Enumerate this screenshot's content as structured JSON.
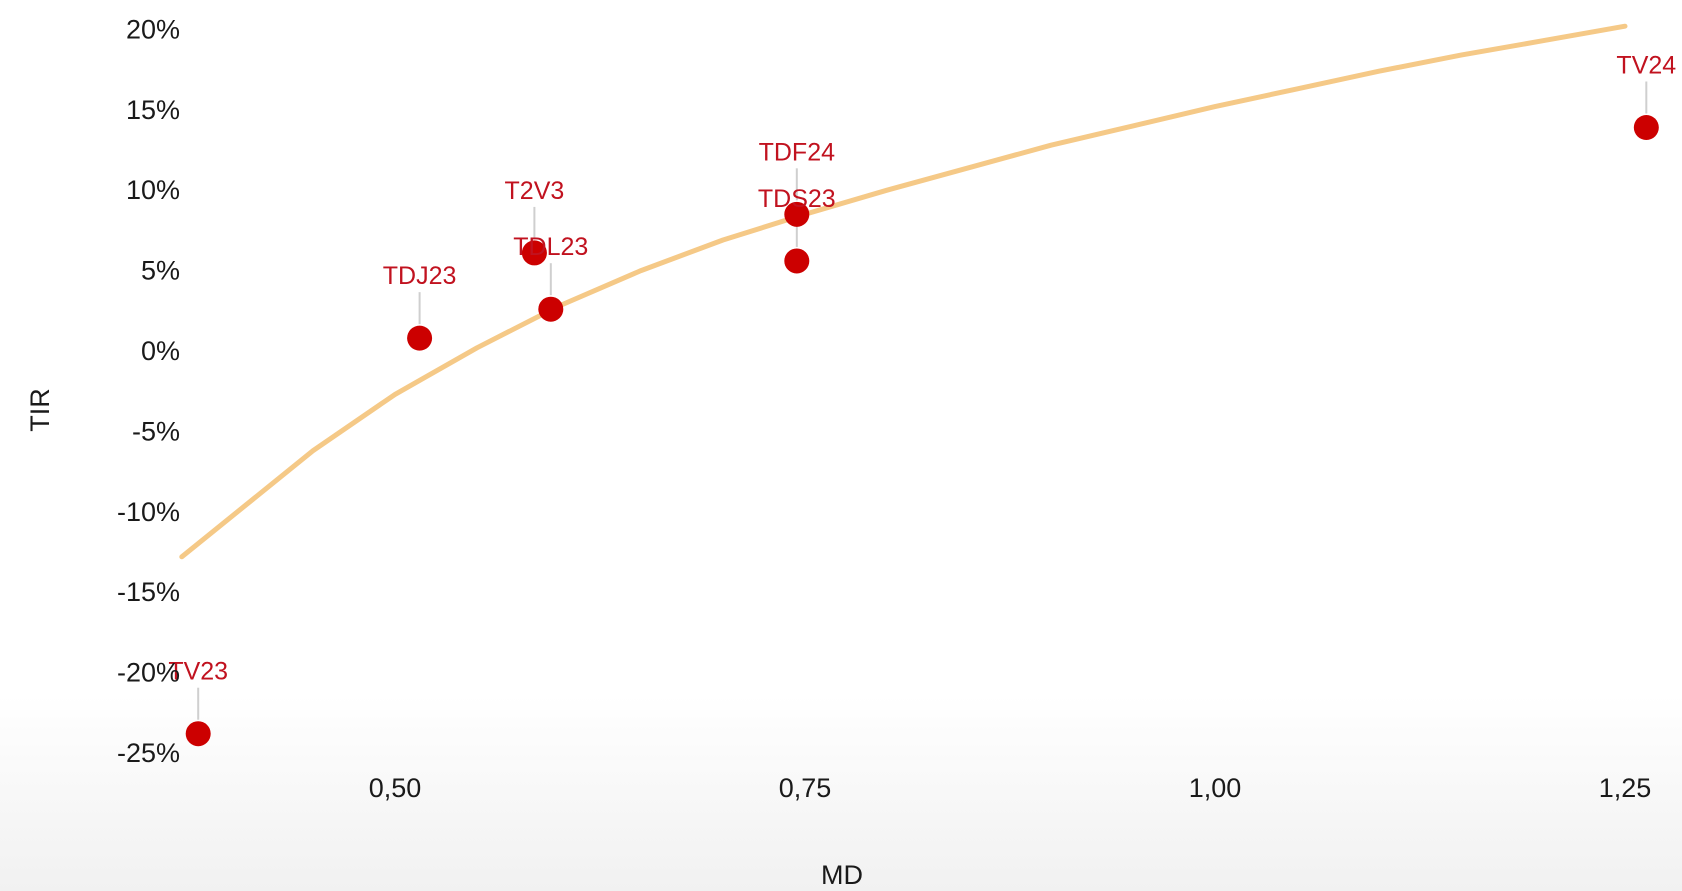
{
  "chart_data": {
    "type": "scatter",
    "xlabel": "MD",
    "ylabel": "TIR",
    "xlim": [
      0.37,
      1.27
    ],
    "ylim": [
      -25,
      20
    ],
    "x_ticks": [
      {
        "value": 0.5,
        "label": "0,50"
      },
      {
        "value": 0.75,
        "label": "0,75"
      },
      {
        "value": 1.0,
        "label": "1,00"
      },
      {
        "value": 1.25,
        "label": "1,25"
      }
    ],
    "y_ticks": [
      {
        "value": 20,
        "label": "20%"
      },
      {
        "value": 15,
        "label": "15%"
      },
      {
        "value": 10,
        "label": "10%"
      },
      {
        "value": 5,
        "label": "5%"
      },
      {
        "value": 0,
        "label": "0%"
      },
      {
        "value": -5,
        "label": "-5%"
      },
      {
        "value": -10,
        "label": "-10%"
      },
      {
        "value": -15,
        "label": "-15%"
      },
      {
        "value": -20,
        "label": "-20%"
      },
      {
        "value": -25,
        "label": "-25%"
      }
    ],
    "grid": false,
    "points": [
      {
        "label": "TV23",
        "x": 0.38,
        "y": -23.8
      },
      {
        "label": "TDJ23",
        "x": 0.515,
        "y": 0.8
      },
      {
        "label": "T2V3",
        "x": 0.585,
        "y": 6.1
      },
      {
        "label": "TDL23",
        "x": 0.595,
        "y": 2.6
      },
      {
        "label": "TDF24",
        "x": 0.745,
        "y": 8.5
      },
      {
        "label": "TDS23",
        "x": 0.745,
        "y": 5.6
      },
      {
        "label": "TV24",
        "x": 1.263,
        "y": 13.9
      }
    ],
    "trendline": {
      "type": "logarithmic",
      "x": [
        0.37,
        0.45,
        0.5,
        0.55,
        0.6,
        0.65,
        0.7,
        0.75,
        0.8,
        0.85,
        0.9,
        0.95,
        1.0,
        1.05,
        1.1,
        1.15,
        1.2,
        1.25
      ],
      "y": [
        -12.8,
        -6.2,
        -2.7,
        0.2,
        2.8,
        5.0,
        6.9,
        8.5,
        10.0,
        11.4,
        12.8,
        14.0,
        15.2,
        16.3,
        17.4,
        18.4,
        19.3,
        20.2
      ]
    },
    "colors": {
      "point": "#cc0000",
      "label": "#c1121f",
      "leader": "#cfcfcf",
      "trendline": "#f5c987",
      "text": "#1a1a1a"
    }
  }
}
